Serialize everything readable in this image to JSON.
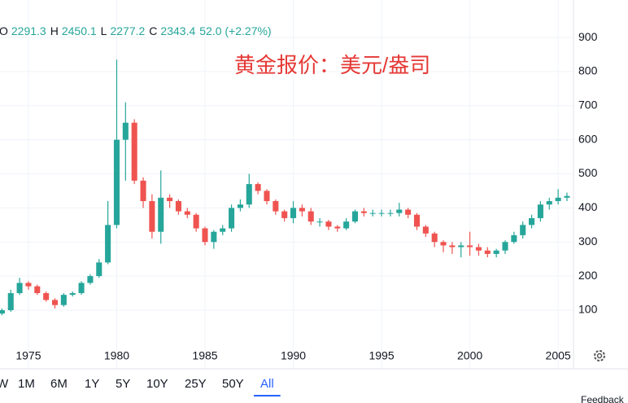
{
  "chart_data": {
    "type": "candlestick",
    "title": "黄金报价：美元/盎司",
    "legend": [
      {
        "label": "O",
        "value": "2291.3"
      },
      {
        "label": "H",
        "value": "2450.1"
      },
      {
        "label": "L",
        "value": "2277.2"
      },
      {
        "label": "C",
        "value": "2343.4"
      }
    ],
    "change": "52.0 (+2.27%)",
    "x": [
      1973.5,
      1974,
      1974.5,
      1975,
      1975.5,
      1976,
      1976.5,
      1977,
      1977.5,
      1978,
      1978.5,
      1979,
      1979.5,
      1980,
      1980.5,
      1981,
      1981.5,
      1982,
      1982.5,
      1983,
      1983.5,
      1984,
      1984.5,
      1985,
      1985.5,
      1986,
      1986.5,
      1987,
      1987.5,
      1988,
      1988.5,
      1989,
      1989.5,
      1990,
      1990.5,
      1991,
      1991.5,
      1992,
      1992.5,
      1993,
      1993.5,
      1994,
      1994.5,
      1995,
      1995.5,
      1996,
      1996.5,
      1997,
      1997.5,
      1998,
      1998.5,
      1999,
      1999.5,
      2000,
      2000.5,
      2001,
      2001.5,
      2002,
      2002.5,
      2003,
      2003.5,
      2004,
      2004.5,
      2005,
      2005.5
    ],
    "open": [
      90,
      100,
      150,
      180,
      170,
      150,
      130,
      115,
      145,
      150,
      180,
      200,
      240,
      350,
      600,
      650,
      480,
      420,
      330,
      430,
      420,
      390,
      380,
      340,
      300,
      330,
      340,
      400,
      410,
      470,
      450,
      420,
      390,
      370,
      400,
      390,
      360,
      360,
      345,
      340,
      360,
      390,
      385,
      385,
      385,
      385,
      395,
      380,
      345,
      325,
      300,
      290,
      285,
      290,
      285,
      275,
      265,
      275,
      300,
      320,
      350,
      370,
      410,
      420,
      430
    ],
    "high": [
      105,
      160,
      195,
      185,
      175,
      155,
      135,
      150,
      155,
      185,
      205,
      250,
      420,
      835,
      710,
      660,
      490,
      440,
      510,
      440,
      425,
      400,
      385,
      345,
      335,
      350,
      410,
      425,
      500,
      475,
      455,
      425,
      395,
      420,
      410,
      400,
      370,
      365,
      350,
      370,
      395,
      400,
      395,
      395,
      395,
      415,
      400,
      385,
      350,
      330,
      305,
      300,
      300,
      330,
      295,
      285,
      280,
      305,
      330,
      360,
      380,
      420,
      430,
      455,
      445
    ],
    "low": [
      85,
      95,
      145,
      160,
      145,
      125,
      105,
      110,
      140,
      145,
      175,
      195,
      235,
      340,
      480,
      470,
      400,
      310,
      295,
      400,
      380,
      370,
      330,
      290,
      280,
      320,
      330,
      390,
      400,
      440,
      410,
      380,
      360,
      355,
      375,
      350,
      345,
      335,
      330,
      335,
      355,
      375,
      375,
      375,
      375,
      375,
      370,
      335,
      315,
      285,
      270,
      265,
      255,
      260,
      260,
      255,
      255,
      265,
      295,
      310,
      340,
      360,
      395,
      410,
      420
    ],
    "close": [
      100,
      150,
      180,
      170,
      150,
      130,
      115,
      145,
      150,
      180,
      200,
      240,
      350,
      600,
      650,
      480,
      420,
      330,
      430,
      420,
      390,
      380,
      340,
      300,
      330,
      340,
      400,
      410,
      470,
      450,
      420,
      390,
      370,
      400,
      390,
      360,
      360,
      345,
      340,
      360,
      390,
      385,
      385,
      385,
      385,
      395,
      380,
      345,
      325,
      300,
      290,
      285,
      290,
      285,
      275,
      265,
      275,
      300,
      320,
      350,
      370,
      410,
      420,
      430,
      435
    ],
    "up_color": "#26a69a",
    "down_color": "#ef5350",
    "xlim": [
      1973.39,
      2005.87
    ],
    "ylim": [
      -72,
      1010
    ],
    "xticks": [
      1975,
      1980,
      1985,
      1990,
      1995,
      2000,
      2005
    ],
    "yticks": [
      100,
      200,
      300,
      400,
      500,
      600,
      700,
      800,
      900
    ],
    "grid": true,
    "ranges": [
      "W",
      "1M",
      "6M",
      "1Y",
      "5Y",
      "10Y",
      "25Y",
      "50Y",
      "All"
    ],
    "selected_range": 8,
    "feedback": "Feedback"
  }
}
